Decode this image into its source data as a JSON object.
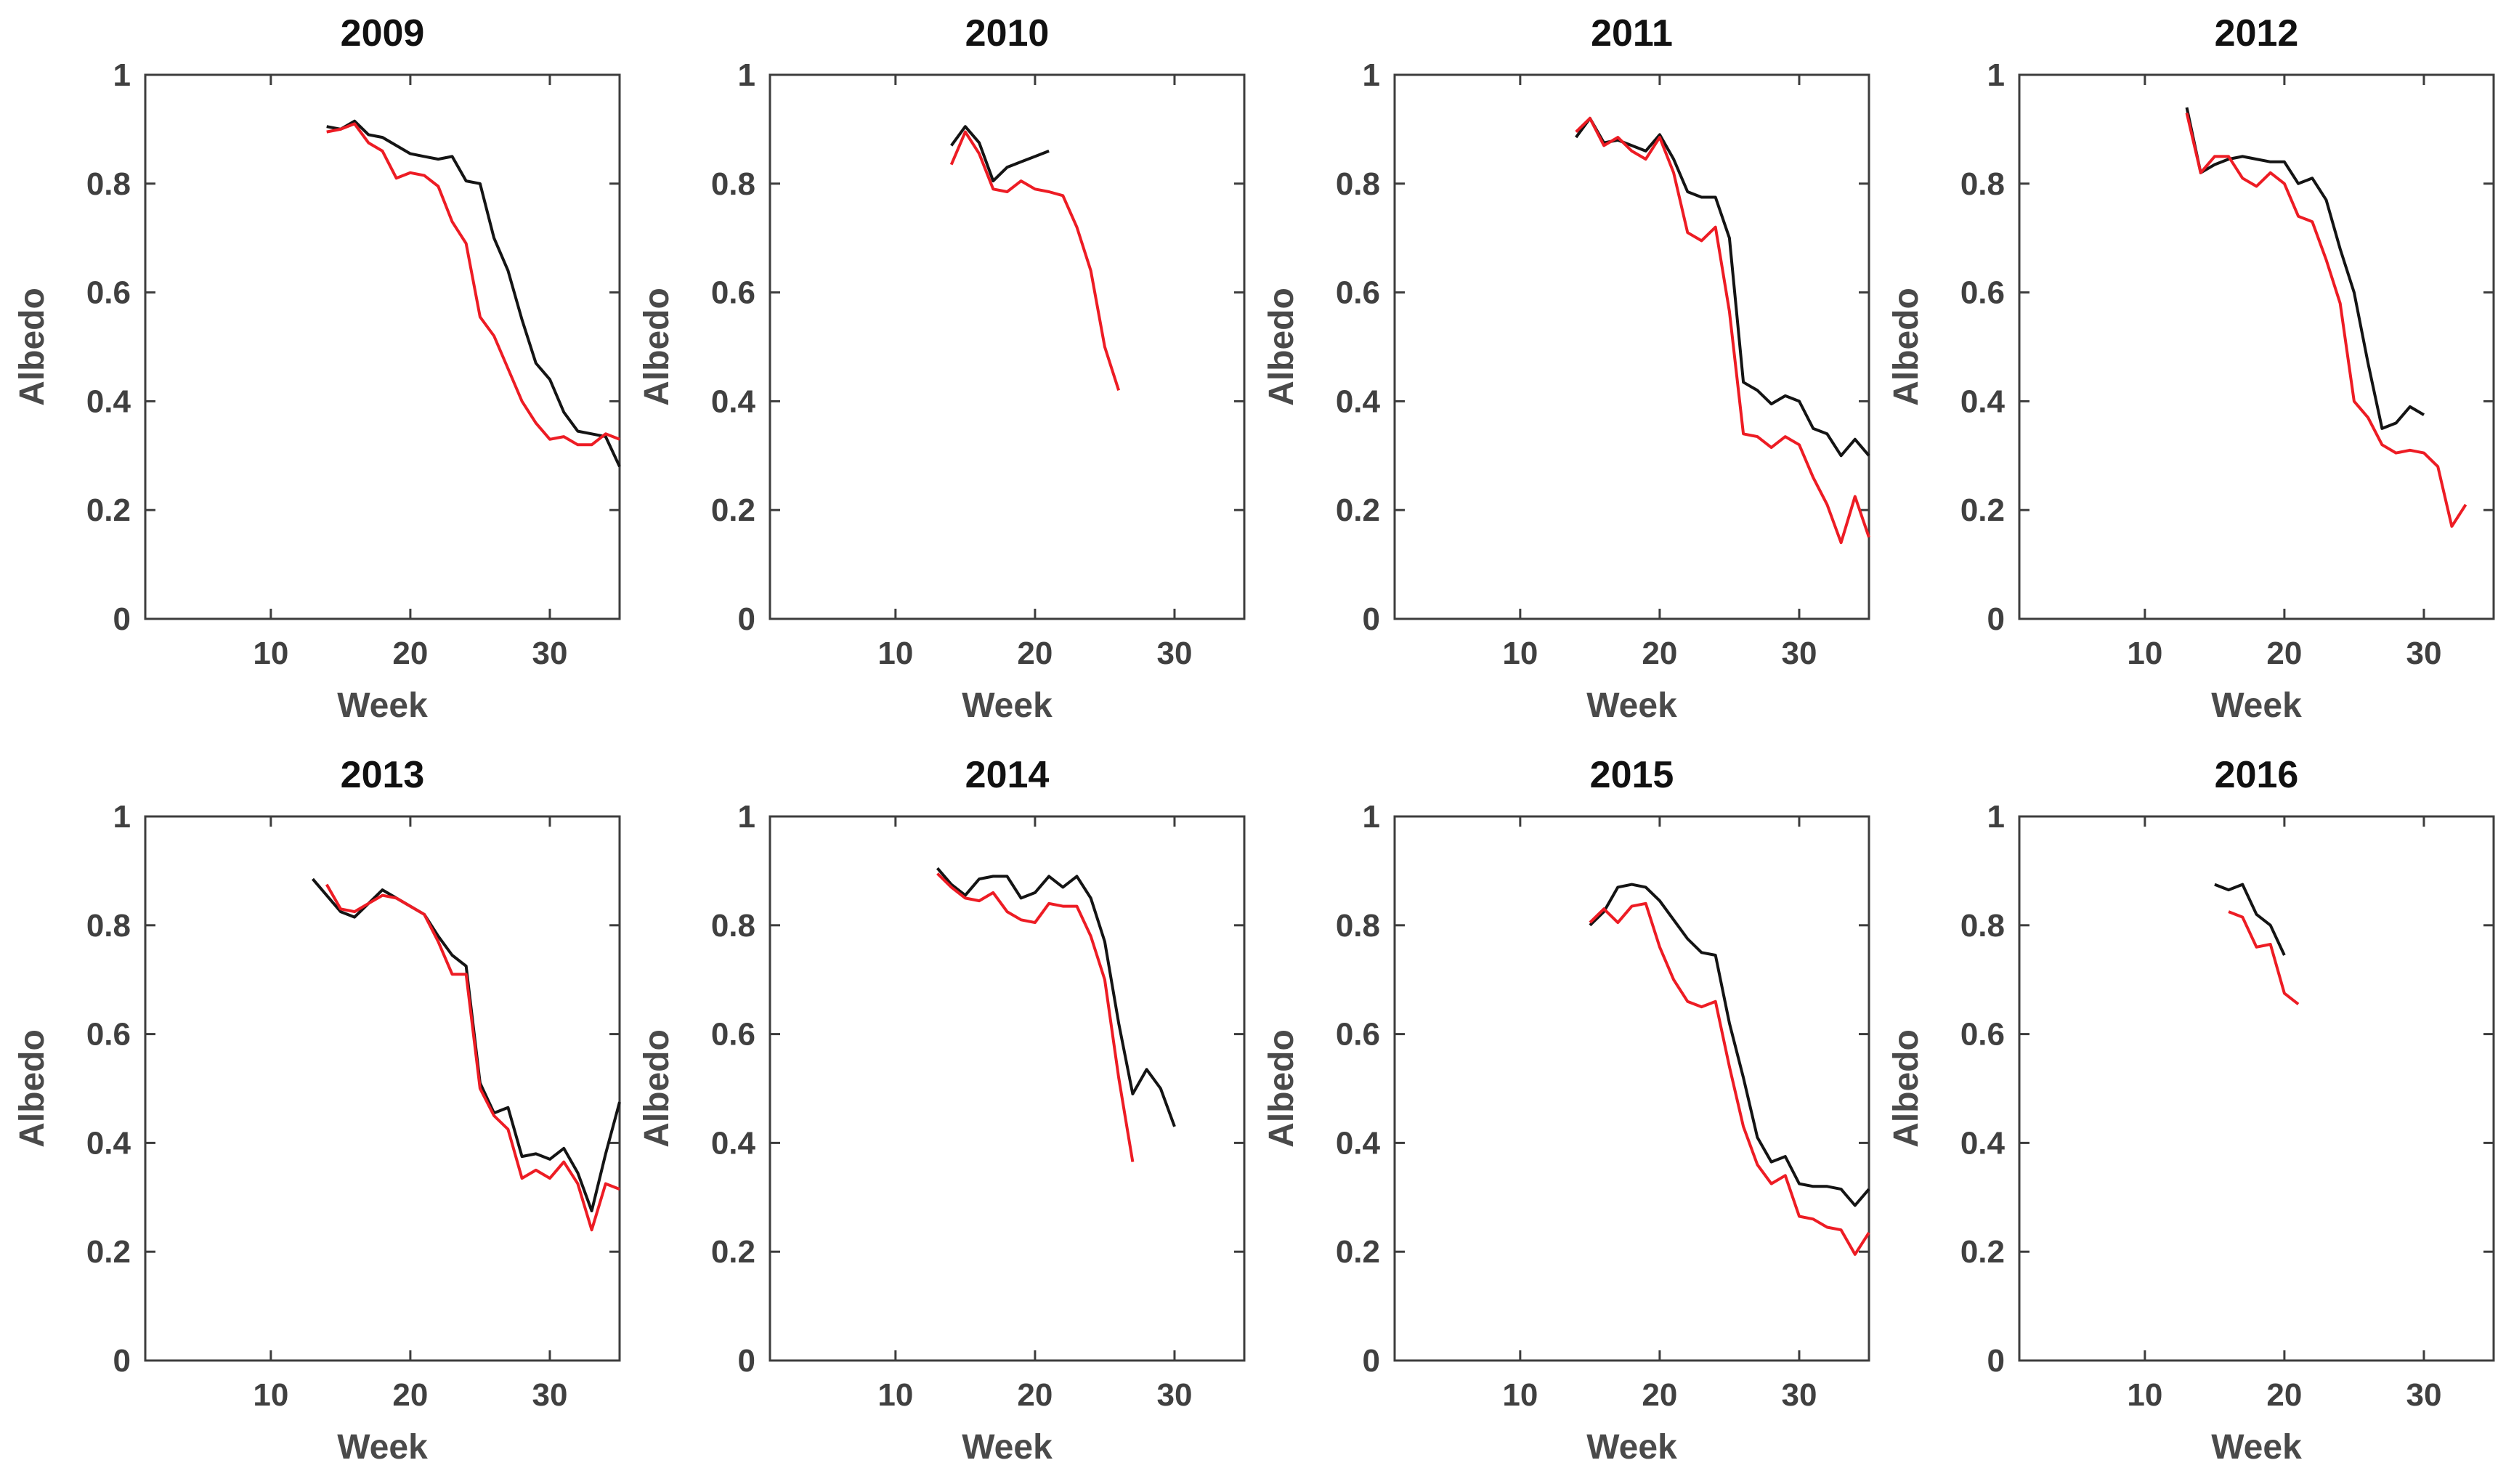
{
  "figure": {
    "background": "#ffffff",
    "axis_color": "#3d3d3d",
    "tick_label_color": "#404040",
    "axis_label_color": "#4a4a4a",
    "title_color": "#111111",
    "series_colors": {
      "black": "#141414",
      "red": "#ed1c24"
    }
  },
  "chart_data": [
    {
      "type": "line",
      "title": "2009",
      "xlabel": "Week",
      "ylabel": "Albedo",
      "xlim": [
        1,
        35
      ],
      "ylim": [
        0,
        1
      ],
      "xticks": [
        10,
        20,
        30
      ],
      "yticks": [
        0,
        0.2,
        0.4,
        0.6,
        0.8,
        1
      ],
      "ytick_labels": [
        "0",
        "0.2",
        "0.4",
        "0.6",
        "0.8",
        "1"
      ],
      "grid": false,
      "legend": "none",
      "series": [
        {
          "name": "black",
          "x": [
            14,
            15,
            16,
            17,
            18,
            19,
            20,
            21,
            22,
            23,
            24,
            25,
            26,
            27,
            28,
            29,
            30,
            31,
            32,
            33,
            34,
            35
          ],
          "y": [
            0.905,
            0.9,
            0.915,
            0.89,
            0.885,
            0.87,
            0.855,
            0.85,
            0.845,
            0.85,
            0.805,
            0.8,
            0.7,
            0.64,
            0.55,
            0.47,
            0.44,
            0.38,
            0.345,
            0.34,
            0.335,
            0.28
          ]
        },
        {
          "name": "red",
          "x": [
            14,
            15,
            16,
            17,
            18,
            19,
            20,
            21,
            22,
            23,
            24,
            25,
            26,
            27,
            28,
            29,
            30,
            31,
            32,
            33,
            34,
            35
          ],
          "y": [
            0.895,
            0.9,
            0.91,
            0.875,
            0.86,
            0.81,
            0.82,
            0.815,
            0.795,
            0.73,
            0.69,
            0.555,
            0.52,
            0.46,
            0.4,
            0.36,
            0.33,
            0.335,
            0.32,
            0.32,
            0.34,
            0.33
          ]
        }
      ]
    },
    {
      "type": "line",
      "title": "2010",
      "xlabel": "Week",
      "ylabel": "Albedo",
      "xlim": [
        1,
        35
      ],
      "ylim": [
        0,
        1
      ],
      "xticks": [
        10,
        20,
        30
      ],
      "yticks": [
        0,
        0.2,
        0.4,
        0.6,
        0.8,
        1
      ],
      "ytick_labels": [
        "0",
        "0.2",
        "0.4",
        "0.6",
        "0.8",
        "1"
      ],
      "grid": false,
      "legend": "none",
      "series": [
        {
          "name": "black",
          "x": [
            14,
            15,
            16,
            17,
            18,
            19,
            20,
            21
          ],
          "y": [
            0.87,
            0.905,
            0.875,
            0.805,
            0.83,
            0.84,
            0.85,
            0.86
          ]
        },
        {
          "name": "red",
          "x": [
            14,
            15,
            16,
            17,
            18,
            19,
            20,
            21,
            22,
            23,
            24,
            25,
            26
          ],
          "y": [
            0.835,
            0.895,
            0.855,
            0.79,
            0.785,
            0.805,
            0.79,
            0.785,
            0.778,
            0.72,
            0.64,
            0.5,
            0.42
          ]
        }
      ]
    },
    {
      "type": "line",
      "title": "2011",
      "xlabel": "Week",
      "ylabel": "Albedo",
      "xlim": [
        1,
        35
      ],
      "ylim": [
        0,
        1
      ],
      "xticks": [
        10,
        20,
        30
      ],
      "yticks": [
        0,
        0.2,
        0.4,
        0.6,
        0.8,
        1
      ],
      "ytick_labels": [
        "0",
        "0.2",
        "0.4",
        "0.6",
        "0.8",
        "1"
      ],
      "grid": false,
      "legend": "none",
      "series": [
        {
          "name": "black",
          "x": [
            14,
            15,
            16,
            17,
            18,
            19,
            20,
            21,
            22,
            23,
            24,
            25,
            26,
            27,
            28,
            29,
            30,
            31,
            32,
            33,
            34,
            35
          ],
          "y": [
            0.885,
            0.92,
            0.875,
            0.88,
            0.87,
            0.86,
            0.89,
            0.845,
            0.785,
            0.775,
            0.775,
            0.7,
            0.435,
            0.42,
            0.395,
            0.41,
            0.4,
            0.35,
            0.34,
            0.3,
            0.33,
            0.3
          ]
        },
        {
          "name": "red",
          "x": [
            14,
            15,
            16,
            17,
            18,
            19,
            20,
            21,
            22,
            23,
            24,
            25,
            26,
            27,
            28,
            29,
            30,
            31,
            32,
            33,
            34,
            35
          ],
          "y": [
            0.895,
            0.92,
            0.87,
            0.885,
            0.86,
            0.845,
            0.885,
            0.82,
            0.71,
            0.695,
            0.72,
            0.565,
            0.34,
            0.335,
            0.315,
            0.335,
            0.32,
            0.26,
            0.21,
            0.14,
            0.225,
            0.15
          ]
        }
      ]
    },
    {
      "type": "line",
      "title": "2012",
      "xlabel": "Week",
      "ylabel": "Albedo",
      "xlim": [
        1,
        35
      ],
      "ylim": [
        0,
        1
      ],
      "xticks": [
        10,
        20,
        30
      ],
      "yticks": [
        0,
        0.2,
        0.4,
        0.6,
        0.8,
        1
      ],
      "ytick_labels": [
        "0",
        "0.2",
        "0.4",
        "0.6",
        "0.8",
        "1"
      ],
      "grid": false,
      "legend": "none",
      "series": [
        {
          "name": "black",
          "x": [
            13,
            14,
            15,
            16,
            17,
            18,
            19,
            20,
            21,
            22,
            23,
            24,
            25,
            26,
            27,
            28,
            29,
            30
          ],
          "y": [
            0.94,
            0.82,
            0.835,
            0.845,
            0.85,
            0.845,
            0.84,
            0.84,
            0.8,
            0.81,
            0.77,
            0.68,
            0.6,
            0.47,
            0.35,
            0.36,
            0.39,
            0.375
          ]
        },
        {
          "name": "red",
          "x": [
            13,
            14,
            15,
            16,
            17,
            18,
            19,
            20,
            21,
            22,
            23,
            24,
            25,
            26,
            27,
            28,
            29,
            30,
            31,
            32,
            33
          ],
          "y": [
            0.93,
            0.82,
            0.85,
            0.85,
            0.81,
            0.795,
            0.82,
            0.8,
            0.74,
            0.73,
            0.66,
            0.58,
            0.4,
            0.37,
            0.32,
            0.305,
            0.31,
            0.305,
            0.28,
            0.17,
            0.21
          ]
        }
      ]
    },
    {
      "type": "line",
      "title": "2013",
      "xlabel": "Week",
      "ylabel": "Albedo",
      "xlim": [
        1,
        35
      ],
      "ylim": [
        0,
        1
      ],
      "xticks": [
        10,
        20,
        30
      ],
      "yticks": [
        0,
        0.2,
        0.4,
        0.6,
        0.8,
        1
      ],
      "ytick_labels": [
        "0",
        "0.2",
        "0.4",
        "0.6",
        "0.8",
        "1"
      ],
      "grid": false,
      "legend": "none",
      "series": [
        {
          "name": "black",
          "x": [
            13,
            14,
            15,
            16,
            17,
            18,
            19,
            20,
            21,
            22,
            23,
            24,
            25,
            26,
            27,
            28,
            29,
            30,
            31,
            32,
            33,
            34,
            35
          ],
          "y": [
            0.885,
            0.855,
            0.825,
            0.815,
            0.84,
            0.865,
            0.85,
            0.835,
            0.82,
            0.78,
            0.745,
            0.725,
            0.51,
            0.455,
            0.465,
            0.375,
            0.38,
            0.37,
            0.39,
            0.345,
            0.275,
            0.38,
            0.475
          ]
        },
        {
          "name": "red",
          "x": [
            14,
            15,
            16,
            17,
            18,
            19,
            20,
            21,
            22,
            23,
            24,
            25,
            26,
            27,
            28,
            29,
            30,
            31,
            32,
            33,
            34,
            35
          ],
          "y": [
            0.875,
            0.83,
            0.825,
            0.84,
            0.855,
            0.85,
            0.835,
            0.82,
            0.77,
            0.71,
            0.71,
            0.5,
            0.45,
            0.425,
            0.335,
            0.35,
            0.335,
            0.365,
            0.325,
            0.24,
            0.325,
            0.315
          ]
        }
      ]
    },
    {
      "type": "line",
      "title": "2014",
      "xlabel": "Week",
      "ylabel": "Albedo",
      "xlim": [
        1,
        35
      ],
      "ylim": [
        0,
        1
      ],
      "xticks": [
        10,
        20,
        30
      ],
      "yticks": [
        0,
        0.2,
        0.4,
        0.6,
        0.8,
        1
      ],
      "ytick_labels": [
        "0",
        "0.2",
        "0.4",
        "0.6",
        "0.8",
        "1"
      ],
      "grid": false,
      "legend": "none",
      "series": [
        {
          "name": "black",
          "x": [
            13,
            14,
            15,
            16,
            17,
            18,
            19,
            20,
            21,
            22,
            23,
            24,
            25,
            26,
            27,
            28,
            29,
            30
          ],
          "y": [
            0.905,
            0.875,
            0.855,
            0.885,
            0.89,
            0.89,
            0.85,
            0.86,
            0.89,
            0.87,
            0.89,
            0.85,
            0.77,
            0.62,
            0.49,
            0.535,
            0.5,
            0.43
          ]
        },
        {
          "name": "red",
          "x": [
            13,
            14,
            15,
            16,
            17,
            18,
            19,
            20,
            21,
            22,
            23,
            24,
            25,
            26,
            27
          ],
          "y": [
            0.895,
            0.87,
            0.85,
            0.845,
            0.86,
            0.825,
            0.81,
            0.805,
            0.84,
            0.835,
            0.835,
            0.78,
            0.7,
            0.52,
            0.365
          ]
        }
      ]
    },
    {
      "type": "line",
      "title": "2015",
      "xlabel": "Week",
      "ylabel": "Albedo",
      "xlim": [
        1,
        35
      ],
      "ylim": [
        0,
        1
      ],
      "xticks": [
        10,
        20,
        30
      ],
      "yticks": [
        0,
        0.2,
        0.4,
        0.6,
        0.8,
        1
      ],
      "ytick_labels": [
        "0",
        "0.2",
        "0.4",
        "0.6",
        "0.8",
        "1"
      ],
      "grid": false,
      "legend": "none",
      "series": [
        {
          "name": "black",
          "x": [
            15,
            16,
            17,
            18,
            19,
            20,
            21,
            22,
            23,
            24,
            25,
            26,
            27,
            28,
            29,
            30,
            31,
            32,
            33,
            34,
            35
          ],
          "y": [
            0.8,
            0.825,
            0.87,
            0.875,
            0.87,
            0.845,
            0.81,
            0.775,
            0.75,
            0.745,
            0.62,
            0.52,
            0.41,
            0.365,
            0.375,
            0.325,
            0.32,
            0.32,
            0.315,
            0.285,
            0.315
          ]
        },
        {
          "name": "red",
          "x": [
            15,
            16,
            17,
            18,
            19,
            20,
            21,
            22,
            23,
            24,
            25,
            26,
            27,
            28,
            29,
            30,
            31,
            32,
            33,
            34,
            35
          ],
          "y": [
            0.805,
            0.83,
            0.805,
            0.835,
            0.84,
            0.76,
            0.7,
            0.66,
            0.65,
            0.66,
            0.54,
            0.43,
            0.36,
            0.325,
            0.34,
            0.265,
            0.26,
            0.245,
            0.24,
            0.195,
            0.235
          ]
        }
      ]
    },
    {
      "type": "line",
      "title": "2016",
      "xlabel": "Week",
      "ylabel": "Albedo",
      "xlim": [
        1,
        35
      ],
      "ylim": [
        0,
        1
      ],
      "xticks": [
        10,
        20,
        30
      ],
      "yticks": [
        0,
        0.2,
        0.4,
        0.6,
        0.8,
        1
      ],
      "ytick_labels": [
        "0",
        "0.2",
        "0.4",
        "0.6",
        "0.8",
        "1"
      ],
      "grid": false,
      "legend": "none",
      "series": [
        {
          "name": "black",
          "x": [
            15,
            16,
            17,
            18,
            19,
            20
          ],
          "y": [
            0.875,
            0.865,
            0.875,
            0.82,
            0.8,
            0.745
          ]
        },
        {
          "name": "red",
          "x": [
            16,
            17,
            18,
            19,
            20,
            21
          ],
          "y": [
            0.825,
            0.815,
            0.76,
            0.765,
            0.675,
            0.655
          ]
        }
      ]
    }
  ]
}
